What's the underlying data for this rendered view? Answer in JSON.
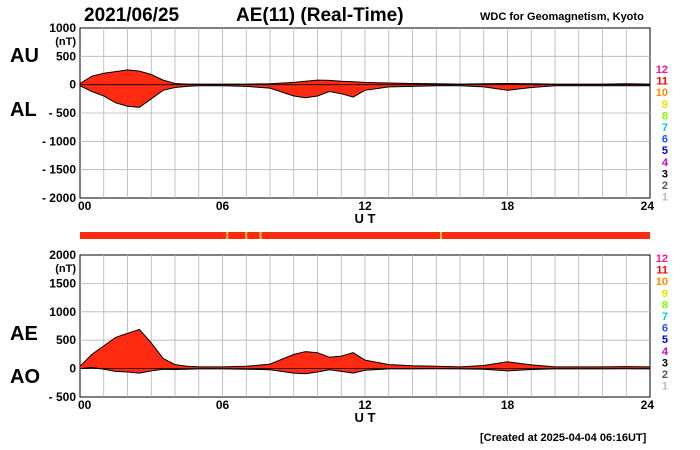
{
  "header": {
    "date": "2021/06/25",
    "title": "AE(11) (Real-Time)",
    "source": "WDC for Geomagnetism, Kyoto",
    "created": "[Created at 2025-04-04 06:16UT]"
  },
  "colors": {
    "fill": "#ff2a12",
    "line": "#000000",
    "grid": "#b4b4b4",
    "bar": "#ff2a12",
    "bar_marks": "#e8c84a"
  },
  "station_index": {
    "labels": [
      "12",
      "11",
      "10",
      "9",
      "8",
      "7",
      "6",
      "5",
      "4",
      "3",
      "2",
      "1"
    ],
    "colors": [
      "#ff1493",
      "#ff0000",
      "#ff8c00",
      "#e6e600",
      "#7fff00",
      "#00cccc",
      "#1e50ff",
      "#0000cc",
      "#cc00cc",
      "#000000",
      "#555555",
      "#bbbbbb"
    ]
  },
  "chart_data": [
    {
      "type": "area",
      "series": [
        {
          "name": "AU",
          "x": [
            0,
            0.5,
            1,
            1.5,
            2,
            2.5,
            3,
            3.5,
            4,
            4.5,
            5,
            6,
            7,
            8,
            9,
            9.5,
            10,
            10.5,
            11,
            11.5,
            12,
            13,
            14,
            15,
            16,
            17,
            18,
            19,
            20,
            21,
            22,
            23,
            24
          ],
          "values": [
            20,
            150,
            200,
            230,
            260,
            240,
            180,
            80,
            20,
            10,
            10,
            10,
            10,
            15,
            40,
            60,
            80,
            75,
            60,
            50,
            40,
            30,
            20,
            15,
            10,
            15,
            20,
            15,
            10,
            10,
            10,
            15,
            10
          ]
        },
        {
          "name": "AL",
          "x": [
            0,
            0.5,
            1,
            1.5,
            2,
            2.5,
            3,
            3.5,
            4,
            4.5,
            5,
            6,
            7,
            8,
            9,
            9.5,
            10,
            10.5,
            11,
            11.5,
            12,
            13,
            14,
            15,
            16,
            17,
            18,
            19,
            20,
            21,
            22,
            23,
            24
          ],
          "values": [
            -20,
            -120,
            -200,
            -320,
            -380,
            -400,
            -250,
            -100,
            -50,
            -30,
            -20,
            -20,
            -30,
            -60,
            -200,
            -230,
            -200,
            -120,
            -160,
            -220,
            -100,
            -40,
            -30,
            -20,
            -20,
            -40,
            -100,
            -50,
            -20,
            -20,
            -20,
            -20,
            -20
          ]
        }
      ],
      "ylabels": [
        "AU",
        "AL"
      ],
      "ylim": [
        -2000,
        1000
      ],
      "yticks": [
        1000,
        500,
        0,
        -500,
        -1000,
        -1500,
        -2000
      ],
      "ytick_labels": [
        "1000",
        "500",
        "0",
        "- 500",
        "- 1000",
        "- 1500",
        "- 2000"
      ],
      "yunit": "(nT)",
      "xlim": [
        0,
        24
      ],
      "xticks": [
        0,
        6,
        12,
        18,
        24
      ],
      "xtick_labels": [
        "00",
        "06",
        "12",
        "18",
        "24"
      ],
      "xlabel": "U T",
      "grid": true
    },
    {
      "type": "area",
      "series": [
        {
          "name": "AE",
          "x": [
            0,
            0.5,
            1,
            1.5,
            2,
            2.5,
            3,
            3.5,
            4,
            4.5,
            5,
            6,
            7,
            8,
            9,
            9.5,
            10,
            10.5,
            11,
            11.5,
            12,
            13,
            14,
            15,
            16,
            17,
            18,
            19,
            20,
            21,
            22,
            23,
            24
          ],
          "values": [
            40,
            250,
            400,
            550,
            620,
            690,
            450,
            180,
            70,
            40,
            30,
            30,
            40,
            80,
            250,
            300,
            280,
            200,
            220,
            280,
            150,
            70,
            50,
            40,
            30,
            55,
            120,
            65,
            30,
            30,
            30,
            35,
            30
          ]
        },
        {
          "name": "AO",
          "x": [
            0,
            0.5,
            1,
            1.5,
            2,
            2.5,
            3,
            3.5,
            4,
            4.5,
            5,
            6,
            7,
            8,
            9,
            9.5,
            10,
            10.5,
            11,
            11.5,
            12,
            13,
            14,
            15,
            16,
            17,
            18,
            19,
            20,
            21,
            22,
            23,
            24
          ],
          "values": [
            0,
            20,
            -10,
            -50,
            -60,
            -80,
            -40,
            -10,
            -15,
            -10,
            -5,
            -5,
            -10,
            -20,
            -80,
            -90,
            -60,
            -20,
            -50,
            -80,
            -30,
            -5,
            -5,
            -3,
            -5,
            -10,
            -40,
            -15,
            -5,
            -5,
            -5,
            -3,
            -5
          ]
        }
      ],
      "ylabels": [
        "AE",
        "AO"
      ],
      "ylim": [
        -500,
        2000
      ],
      "yticks": [
        2000,
        1500,
        1000,
        500,
        0,
        -500
      ],
      "ytick_labels": [
        "2000",
        "1500",
        "1000",
        "500",
        "0",
        "- 500"
      ],
      "yunit": "(nT)",
      "xlim": [
        0,
        24
      ],
      "xticks": [
        0,
        6,
        12,
        18,
        24
      ],
      "xtick_labels": [
        "00",
        "06",
        "12",
        "18",
        "24"
      ],
      "xlabel": "U T",
      "grid": true
    }
  ],
  "quality_bar": {
    "marks_ut": [
      6.2,
      7.0,
      7.6,
      15.2
    ]
  }
}
